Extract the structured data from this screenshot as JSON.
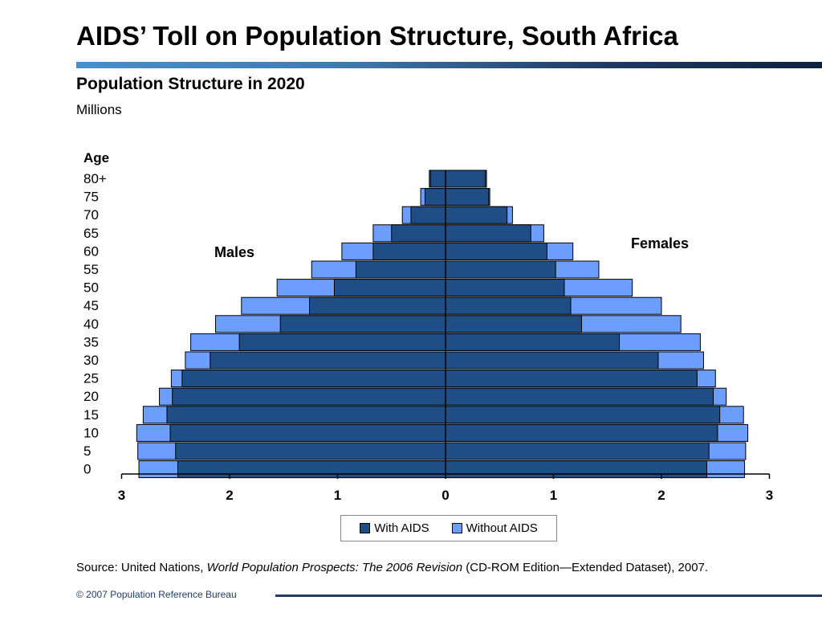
{
  "page": {
    "title": "AIDS’ Toll on Population Structure, South Africa",
    "subtitle": "Population Structure in 2020",
    "units": "Millions",
    "source_prefix": "Source: United Nations, ",
    "source_italic": "World Population Prospects: The 2006 Revision",
    "source_suffix": " (CD-ROM Edition—Extended Dataset), 2007.",
    "copyright": "© 2007 Population Reference Bureau"
  },
  "colors": {
    "with_aids": "#1f4e87",
    "without_aids": "#6b9eff",
    "title_bar": "#1f3c64"
  },
  "chart_data": {
    "type": "bar",
    "orientation": "horizontal-pyramid",
    "age_axis_title": "Age",
    "age_groups": [
      "80+",
      "75",
      "70",
      "65",
      "60",
      "55",
      "50",
      "45",
      "40",
      "35",
      "30",
      "25",
      "20",
      "15",
      "10",
      "5",
      "0"
    ],
    "side_labels": {
      "left": "Males",
      "right": "Females"
    },
    "x_ticks": [
      "3",
      "2",
      "1",
      "0",
      "1",
      "2",
      "3"
    ],
    "xlim": [
      -3,
      3
    ],
    "legend": {
      "with_aids": "With AIDS",
      "without_aids": "Without AIDS"
    },
    "legend_position": "bottom",
    "series": [
      {
        "name": "With AIDS",
        "males": [
          0.14,
          0.19,
          0.32,
          0.5,
          0.67,
          0.83,
          1.03,
          1.26,
          1.53,
          1.91,
          2.18,
          2.44,
          2.53,
          2.58,
          2.55,
          2.5,
          2.48
        ],
        "females": [
          0.37,
          0.4,
          0.57,
          0.79,
          0.94,
          1.02,
          1.1,
          1.16,
          1.26,
          1.61,
          1.97,
          2.33,
          2.48,
          2.54,
          2.52,
          2.44,
          2.42
        ]
      },
      {
        "name": "Without AIDS",
        "males": [
          0.15,
          0.23,
          0.4,
          0.67,
          0.96,
          1.24,
          1.56,
          1.89,
          2.13,
          2.36,
          2.41,
          2.54,
          2.65,
          2.8,
          2.86,
          2.85,
          2.84
        ],
        "females": [
          0.38,
          0.41,
          0.62,
          0.91,
          1.18,
          1.42,
          1.73,
          2.0,
          2.18,
          2.36,
          2.39,
          2.5,
          2.6,
          2.76,
          2.8,
          2.78,
          2.77
        ]
      }
    ]
  }
}
